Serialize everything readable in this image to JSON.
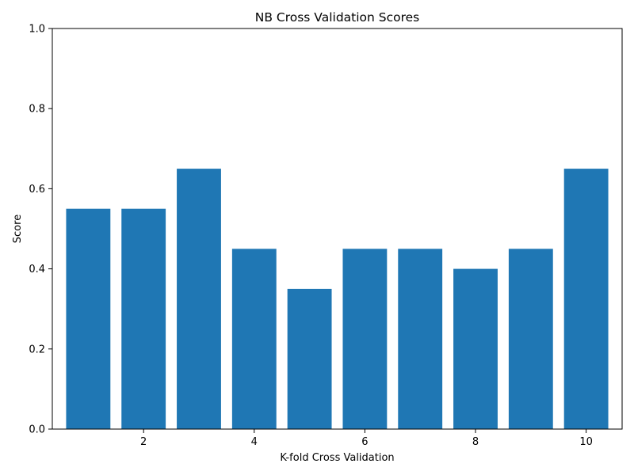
{
  "chart_data": {
    "type": "bar",
    "title": "NB Cross Validation Scores",
    "xlabel": "K-fold Cross Validation",
    "ylabel": "Score",
    "x": [
      1,
      2,
      3,
      4,
      5,
      6,
      7,
      8,
      9,
      10
    ],
    "values": [
      0.55,
      0.55,
      0.65,
      0.45,
      0.35,
      0.45,
      0.45,
      0.4,
      0.45,
      0.65
    ],
    "xlim": [
      0.35,
      10.65
    ],
    "ylim": [
      0.0,
      1.0
    ],
    "xticks": [
      2,
      4,
      6,
      8,
      10
    ],
    "xtick_labels": [
      "2",
      "4",
      "6",
      "8",
      "10"
    ],
    "yticks": [
      0.0,
      0.2,
      0.4,
      0.6,
      0.8,
      1.0
    ],
    "ytick_labels": [
      "0.0",
      "0.2",
      "0.4",
      "0.6",
      "0.8",
      "1.0"
    ],
    "bar_color": "#1f77b4",
    "grid": false,
    "legend": "none"
  }
}
